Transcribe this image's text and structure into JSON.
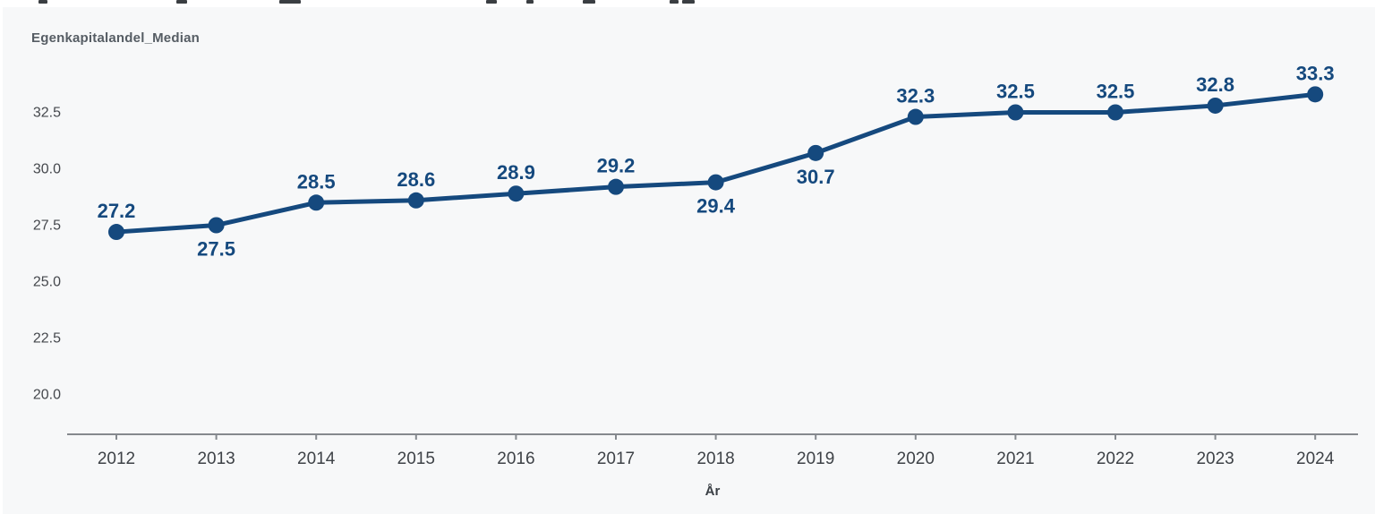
{
  "chart_data": {
    "type": "line",
    "title": "Egenkapitalandel_Median",
    "xlabel": "År",
    "ylabel": "Egenkapitalandel_Median",
    "grid": false,
    "legend": "none",
    "x": [
      2012,
      2013,
      2014,
      2015,
      2016,
      2017,
      2018,
      2019,
      2020,
      2021,
      2022,
      2023,
      2024
    ],
    "series": [
      {
        "name": "Egenkapitalandel_Median",
        "values": [
          27.2,
          27.5,
          28.5,
          28.6,
          28.9,
          29.2,
          29.4,
          30.7,
          32.3,
          32.5,
          32.5,
          32.8,
          33.3
        ],
        "data_labels": [
          "27.2",
          "27.5",
          "28.5",
          "28.6",
          "28.9",
          "29.2",
          "29.4",
          "30.7",
          "32.3",
          "32.5",
          "32.5",
          "32.8",
          "33.3"
        ],
        "label_positions": [
          "above",
          "below",
          "above",
          "above",
          "above",
          "above",
          "below",
          "below",
          "above",
          "above",
          "above",
          "above",
          "above"
        ]
      }
    ],
    "y_ticks": [
      20.0,
      22.5,
      25.0,
      27.5,
      30.0,
      32.5
    ],
    "y_tick_labels": [
      "20.0",
      "22.5",
      "25.0",
      "27.5",
      "30.0",
      "32.5"
    ],
    "ylim": [
      18.2,
      34.4
    ],
    "colors": {
      "line": "#15497e",
      "marker": "#15497e",
      "data_label": "#15497e",
      "panel_background": "#f7f8f9",
      "axis_line": "#85898e",
      "x_tick_label": "#3e4247",
      "y_tick_label": "#45484d",
      "axis_title": "#565d64"
    }
  },
  "top_fragments": [
    {
      "x": 43,
      "w": 10
    },
    {
      "x": 197,
      "w": 12
    },
    {
      "x": 312,
      "w": 24
    },
    {
      "x": 543,
      "w": 12
    },
    {
      "x": 588,
      "w": 8
    },
    {
      "x": 651,
      "w": 14
    },
    {
      "x": 748,
      "w": 10
    },
    {
      "x": 762,
      "w": 14
    }
  ]
}
